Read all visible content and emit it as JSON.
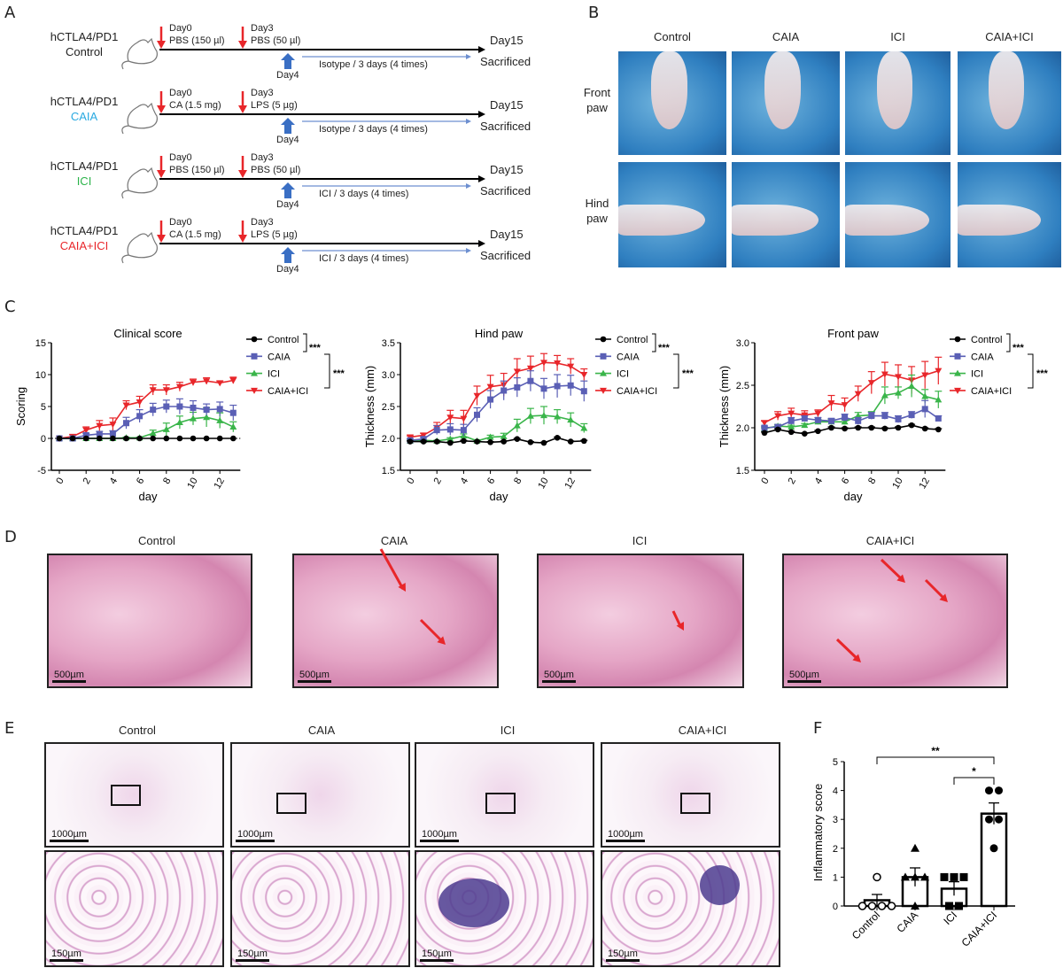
{
  "panels": {
    "a": "A",
    "b": "B",
    "c": "C",
    "d": "D",
    "e": "E",
    "f": "F"
  },
  "panel_a": {
    "rows": [
      {
        "strain": "hCTLA4/PD1",
        "group": "Control",
        "group_color": "#222222",
        "day0": "Day0",
        "dose0": "PBS (150 µl)",
        "day3": "Day3",
        "dose3": "PBS (50 µl)",
        "day4": "Day4",
        "treatment": "Isotype / 3 days (4 times)",
        "end": "Day15",
        "end2": "Sacrificed"
      },
      {
        "strain": "hCTLA4/PD1",
        "group": "CAIA",
        "group_color": "#29a9e1",
        "day0": "Day0",
        "dose0": "CA (1.5 mg)",
        "day3": "Day3",
        "dose3": "LPS (5 µg)",
        "day4": "Day4",
        "treatment": "Isotype / 3 days (4 times)",
        "end": "Day15",
        "end2": "Sacrificed"
      },
      {
        "strain": "hCTLA4/PD1",
        "group": "ICI",
        "group_color": "#2cb34a",
        "day0": "Day0",
        "dose0": "PBS (150 µl)",
        "day3": "Day3",
        "dose3": "PBS (50 µl)",
        "day4": "Day4",
        "treatment": "ICI / 3 days (4 times)",
        "end": "Day15",
        "end2": "Sacrificed"
      },
      {
        "strain": "hCTLA4/PD1",
        "group": "CAIA+ICI",
        "group_color": "#e8262a",
        "day0": "Day0",
        "dose0": "CA (1.5 mg)",
        "day3": "Day3",
        "dose3": "LPS (5 µg)",
        "day4": "Day4",
        "treatment": "ICI / 3 days (4 times)",
        "end": "Day15",
        "end2": "Sacrificed"
      }
    ]
  },
  "panel_b": {
    "columns": [
      "Control",
      "CAIA",
      "ICI",
      "CAIA+ICI"
    ],
    "rows": [
      [
        "Front",
        "paw"
      ],
      [
        "Hind",
        "paw"
      ]
    ]
  },
  "panel_d": {
    "columns": [
      "Control",
      "CAIA",
      "ICI",
      "CAIA+ICI"
    ],
    "scale": "500µm"
  },
  "panel_e": {
    "columns": [
      "Control",
      "CAIA",
      "ICI",
      "CAIA+ICI"
    ],
    "scale_top": "1000µm",
    "scale_bottom": "150µm"
  },
  "chart_data": [
    {
      "type": "line",
      "title": "Clinical score",
      "xlabel": "day",
      "ylabel": "Scoring",
      "ylim": [
        -5,
        15
      ],
      "yticks": [
        "-5",
        "0",
        "5",
        "10",
        "15"
      ],
      "xticks": [
        "0",
        "2",
        "4",
        "6",
        "8",
        "10",
        "12"
      ],
      "x": [
        0,
        1,
        2,
        3,
        4,
        5,
        6,
        7,
        8,
        9,
        10,
        11,
        12,
        13
      ],
      "legend": "right",
      "significance": [
        "***",
        "***"
      ],
      "series": [
        {
          "name": "Control",
          "color": "#000000",
          "marker": "circle",
          "values": [
            0,
            0,
            0,
            0,
            0,
            0,
            0,
            0,
            0,
            0,
            0,
            0,
            0,
            0
          ],
          "sem": [
            0,
            0,
            0,
            0,
            0,
            0,
            0,
            0,
            0,
            0,
            0,
            0,
            0,
            0
          ]
        },
        {
          "name": "CAIA",
          "color": "#5a5fb5",
          "marker": "square",
          "values": [
            0,
            0,
            0.5,
            0.7,
            0.7,
            2.4,
            3.5,
            4.5,
            5,
            5,
            4.8,
            4.5,
            4.6,
            4
          ],
          "sem": [
            0,
            0,
            0.3,
            0.4,
            0.5,
            0.9,
            1,
            1,
            1,
            1.2,
            1.1,
            0.9,
            1.1,
            1.2
          ]
        },
        {
          "name": "ICI",
          "color": "#3ab54a",
          "marker": "triangle-up",
          "values": [
            0,
            0,
            0,
            0,
            0,
            0.1,
            0.1,
            0.8,
            1.4,
            2.5,
            3.1,
            3.3,
            2.8,
            1.8
          ],
          "sem": [
            0,
            0,
            0,
            0,
            0,
            0.1,
            0.1,
            0.5,
            1,
            1,
            1,
            1.5,
            1.2,
            0.8
          ]
        },
        {
          "name": "CAIA+ICI",
          "color": "#e8262a",
          "marker": "triangle-down",
          "values": [
            0,
            0.3,
            1.3,
            2,
            2.2,
            5.2,
            5.7,
            7.6,
            7.6,
            8.1,
            8.8,
            9,
            8.7,
            9.1
          ],
          "sem": [
            0,
            0.3,
            0.5,
            0.8,
            1,
            0.7,
            0.9,
            0.8,
            0.8,
            0.7,
            0.5,
            0.5,
            0.3,
            0.5
          ]
        }
      ]
    },
    {
      "type": "line",
      "title": "Hind paw",
      "xlabel": "day",
      "ylabel": "Thickness (mm)",
      "ylim": [
        1.5,
        3.5
      ],
      "yticks": [
        "1.5",
        "2.0",
        "2.5",
        "3.0",
        "3.5"
      ],
      "xticks": [
        "0",
        "2",
        "4",
        "6",
        "8",
        "10",
        "12"
      ],
      "x": [
        0,
        1,
        2,
        3,
        4,
        5,
        6,
        7,
        8,
        9,
        10,
        11,
        12,
        13
      ],
      "legend": "right",
      "significance": [
        "***",
        "***"
      ],
      "series": [
        {
          "name": "Control",
          "color": "#000000",
          "marker": "circle",
          "values": [
            1.95,
            1.95,
            1.95,
            1.93,
            1.96,
            1.95,
            1.94,
            1.95,
            1.99,
            1.94,
            1.93,
            2.01,
            1.95,
            1.96
          ],
          "sem": [
            0.01,
            0.01,
            0.01,
            0.01,
            0.01,
            0.01,
            0.01,
            0.01,
            0.01,
            0.01,
            0.01,
            0.01,
            0.01,
            0.01
          ]
        },
        {
          "name": "CAIA",
          "color": "#5a5fb5",
          "marker": "square",
          "values": [
            1.97,
            1.99,
            2.13,
            2.14,
            2.13,
            2.37,
            2.61,
            2.75,
            2.8,
            2.9,
            2.78,
            2.82,
            2.83,
            2.74
          ],
          "sem": [
            0.02,
            0.03,
            0.07,
            0.09,
            0.09,
            0.11,
            0.14,
            0.15,
            0.15,
            0.16,
            0.16,
            0.18,
            0.16,
            0.16
          ]
        },
        {
          "name": "ICI",
          "color": "#3ab54a",
          "marker": "triangle-up",
          "values": [
            1.96,
            1.97,
            1.96,
            1.99,
            2.04,
            1.96,
            2.02,
            2.03,
            2.2,
            2.35,
            2.36,
            2.34,
            2.29,
            2.16
          ],
          "sem": [
            0.01,
            0.01,
            0.01,
            0.02,
            0.03,
            0.02,
            0.03,
            0.05,
            0.1,
            0.12,
            0.14,
            0.11,
            0.11,
            0.07
          ]
        },
        {
          "name": "CAIA+ICI",
          "color": "#e8262a",
          "marker": "triangle-down",
          "values": [
            2.02,
            2.05,
            2.17,
            2.33,
            2.31,
            2.67,
            2.81,
            2.84,
            3.05,
            3.1,
            3.19,
            3.18,
            3.13,
            3.0
          ],
          "sem": [
            0.02,
            0.03,
            0.08,
            0.11,
            0.13,
            0.15,
            0.18,
            0.18,
            0.2,
            0.19,
            0.14,
            0.12,
            0.12,
            0.09
          ]
        }
      ]
    },
    {
      "type": "line",
      "title": "Front paw",
      "xlabel": "day",
      "ylabel": "Thickness (mm)",
      "ylim": [
        1.5,
        3.0
      ],
      "yticks": [
        "1.5",
        "2.0",
        "2.5",
        "3.0"
      ],
      "xticks": [
        "0",
        "2",
        "4",
        "6",
        "8",
        "10",
        "12"
      ],
      "x": [
        0,
        1,
        2,
        3,
        4,
        5,
        6,
        7,
        8,
        9,
        10,
        11,
        12,
        13
      ],
      "legend": "right",
      "significance": [
        "***",
        "***"
      ],
      "series": [
        {
          "name": "Control",
          "color": "#000000",
          "marker": "circle",
          "values": [
            1.94,
            1.98,
            1.95,
            1.93,
            1.96,
            2.0,
            1.99,
            2.0,
            2.0,
            1.99,
            2.0,
            2.03,
            1.99,
            1.98
          ],
          "sem": [
            0.01,
            0.01,
            0.01,
            0.01,
            0.01,
            0.01,
            0.01,
            0.01,
            0.01,
            0.01,
            0.01,
            0.01,
            0.01,
            0.01
          ]
        },
        {
          "name": "CAIA",
          "color": "#5a5fb5",
          "marker": "square",
          "values": [
            2.0,
            2.01,
            2.08,
            2.11,
            2.09,
            2.08,
            2.12,
            2.08,
            2.14,
            2.14,
            2.1,
            2.15,
            2.22,
            2.11
          ],
          "sem": [
            0.02,
            0.02,
            0.04,
            0.03,
            0.03,
            0.03,
            0.04,
            0.04,
            0.04,
            0.04,
            0.04,
            0.04,
            0.1,
            0.03
          ]
        },
        {
          "name": "ICI",
          "color": "#3ab54a",
          "marker": "triangle-up",
          "values": [
            1.99,
            2.02,
            2.01,
            2.03,
            2.07,
            2.07,
            2.07,
            2.14,
            2.15,
            2.38,
            2.41,
            2.49,
            2.37,
            2.33
          ],
          "sem": [
            0.01,
            0.02,
            0.02,
            0.02,
            0.03,
            0.03,
            0.03,
            0.04,
            0.04,
            0.1,
            0.07,
            0.13,
            0.08,
            0.1
          ]
        },
        {
          "name": "CAIA+ICI",
          "color": "#e8262a",
          "marker": "triangle-down",
          "values": [
            2.06,
            2.14,
            2.17,
            2.15,
            2.17,
            2.29,
            2.27,
            2.4,
            2.53,
            2.63,
            2.6,
            2.56,
            2.62,
            2.67
          ],
          "sem": [
            0.02,
            0.05,
            0.06,
            0.05,
            0.04,
            0.09,
            0.08,
            0.09,
            0.13,
            0.14,
            0.14,
            0.16,
            0.16,
            0.16
          ]
        }
      ]
    },
    {
      "type": "bar",
      "ylabel": "Inflammatory score",
      "ylim": [
        0,
        5
      ],
      "yticks": [
        "0",
        "1",
        "2",
        "3",
        "4",
        "5"
      ],
      "categories": [
        "Control",
        "CAIA",
        "ICI",
        "CAIA+ICI"
      ],
      "values": [
        0.2,
        1.0,
        0.6,
        3.2
      ],
      "sem": [
        0.2,
        0.32,
        0.24,
        0.37
      ],
      "points": [
        [
          1,
          0,
          0,
          0,
          0
        ],
        [
          2,
          1,
          1,
          1,
          0
        ],
        [
          1,
          1,
          1,
          0,
          0
        ],
        [
          4,
          4,
          3,
          3,
          2
        ]
      ],
      "markers": [
        "open-circle",
        "triangle",
        "square",
        "circle"
      ],
      "comparisons": [
        {
          "from": "Control",
          "to": "CAIA+ICI",
          "label": "**"
        },
        {
          "from": "ICI",
          "to": "CAIA+ICI",
          "label": "*"
        }
      ]
    }
  ]
}
